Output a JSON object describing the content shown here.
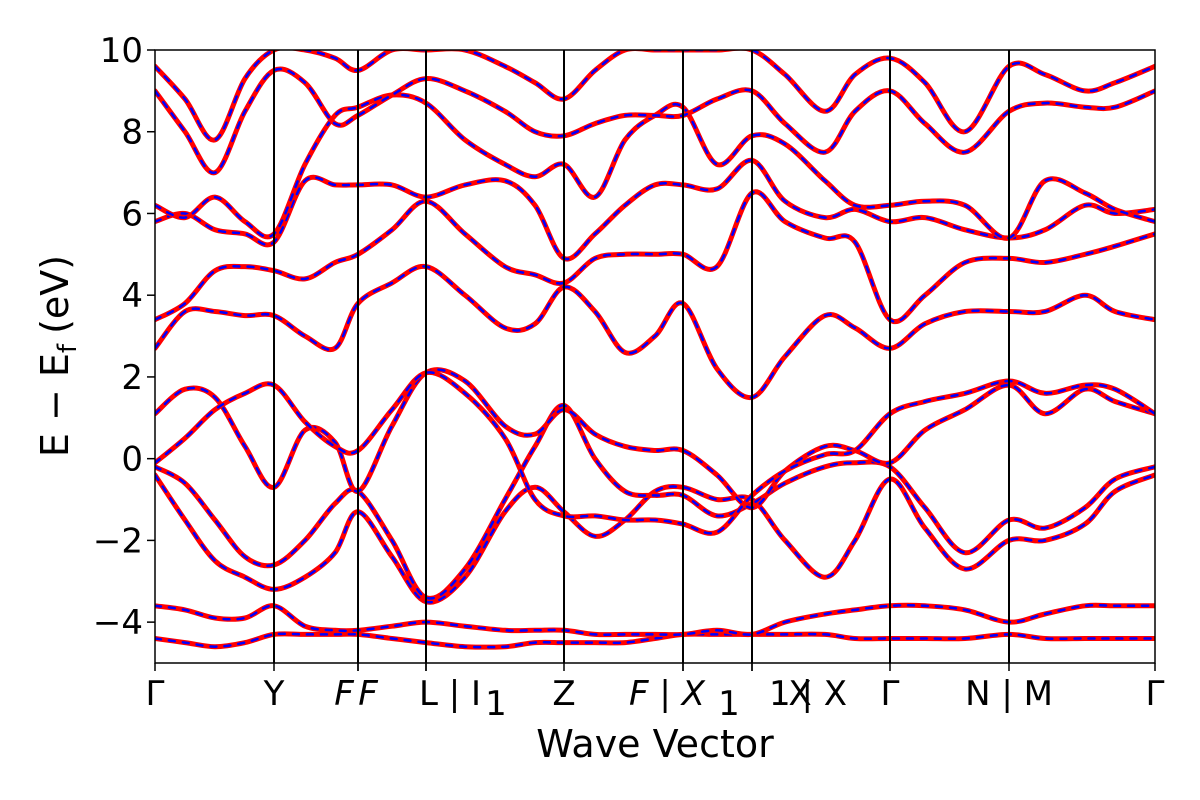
{
  "chart_data": {
    "type": "line",
    "xlabel": "Wave Vector",
    "ylabel": "E − E",
    "ylabel_sub": "f",
    "ylabel_unit": "(eV)",
    "ylim": [
      -5,
      10
    ],
    "yticks": [
      {
        "value": -4,
        "label": "−4"
      },
      {
        "value": -2,
        "label": "−2"
      },
      {
        "value": 0,
        "label": "0"
      },
      {
        "value": 2,
        "label": "2"
      },
      {
        "value": 4,
        "label": "4"
      },
      {
        "value": 6,
        "label": "6"
      },
      {
        "value": 8,
        "label": "8"
      },
      {
        "value": 10,
        "label": "10"
      }
    ],
    "grid": false,
    "kpath": [
      {
        "pos": 0.0,
        "label": "Γ"
      },
      {
        "pos": 0.119,
        "label": "Y"
      },
      {
        "pos": 0.203,
        "label": "F"
      },
      {
        "pos": 0.203,
        "label": "F"
      },
      {
        "pos": 0.271,
        "label": "L | I"
      },
      {
        "pos": 0.271,
        "label": "1"
      },
      {
        "pos": 0.409,
        "label": "Z"
      },
      {
        "pos": 0.528,
        "label": "F | X"
      },
      {
        "pos": 0.528,
        "label": "1"
      },
      {
        "pos": 0.597,
        "label": "X"
      },
      {
        "pos": 0.597,
        "label": "1 | X"
      },
      {
        "pos": 0.735,
        "label": "Γ"
      },
      {
        "pos": 0.854,
        "label": "N | M"
      },
      {
        "pos": 1.0,
        "label": "Γ"
      }
    ],
    "kpath_lines": [
      0.119,
      0.203,
      0.271,
      0.409,
      0.528,
      0.597,
      0.735,
      0.854
    ],
    "series_colors": {
      "main": "#ff0000",
      "overlay": "#0000ff"
    },
    "x": [
      0.0,
      0.03,
      0.06,
      0.09,
      0.119,
      0.15,
      0.18,
      0.203,
      0.237,
      0.271,
      0.31,
      0.35,
      0.38,
      0.409,
      0.44,
      0.47,
      0.5,
      0.528,
      0.562,
      0.597,
      0.63,
      0.67,
      0.7,
      0.735,
      0.77,
      0.81,
      0.854,
      0.89,
      0.93,
      0.96,
      1.0
    ],
    "bands": [
      [
        -4.4,
        -4.5,
        -4.6,
        -4.5,
        -4.3,
        -4.3,
        -4.3,
        -4.3,
        -4.4,
        -4.5,
        -4.6,
        -4.6,
        -4.5,
        -4.5,
        -4.5,
        -4.5,
        -4.4,
        -4.3,
        -4.3,
        -4.3,
        -4.3,
        -4.3,
        -4.4,
        -4.4,
        -4.4,
        -4.4,
        -4.3,
        -4.4,
        -4.4,
        -4.4,
        -4.4
      ],
      [
        -3.6,
        -3.7,
        -3.9,
        -3.9,
        -3.6,
        -4.1,
        -4.2,
        -4.2,
        -4.1,
        -4.0,
        -4.1,
        -4.2,
        -4.2,
        -4.2,
        -4.3,
        -4.3,
        -4.3,
        -4.3,
        -4.2,
        -4.3,
        -4.0,
        -3.8,
        -3.7,
        -3.6,
        -3.6,
        -3.7,
        -4.0,
        -3.8,
        -3.6,
        -3.6,
        -3.6
      ],
      [
        -0.4,
        -1.5,
        -2.5,
        -2.9,
        -3.2,
        -2.9,
        -2.3,
        -1.3,
        -2.4,
        -3.5,
        -2.9,
        -1.3,
        -0.7,
        -1.3,
        -1.9,
        -1.5,
        -0.8,
        -0.7,
        -1.0,
        -1.0,
        -2.0,
        -2.9,
        -2.0,
        -0.5,
        -1.7,
        -2.7,
        -2.0,
        -2.0,
        -1.6,
        -0.8,
        -0.4
      ],
      [
        -0.2,
        -0.6,
        -1.5,
        -2.4,
        -2.6,
        -2.0,
        -1.1,
        -0.8,
        -2.0,
        -3.4,
        -2.7,
        -1.0,
        0.3,
        1.3,
        0.0,
        -0.8,
        -0.9,
        -0.9,
        -1.4,
        -1.1,
        -0.6,
        -0.2,
        -0.1,
        -0.2,
        -1.2,
        -2.3,
        -1.5,
        -1.7,
        -1.2,
        -0.5,
        -0.2
      ],
      [
        1.1,
        1.7,
        1.5,
        0.3,
        -0.7,
        0.7,
        0.4,
        -0.8,
        0.8,
        2.1,
        1.9,
        0.8,
        0.6,
        1.2,
        0.6,
        0.3,
        0.2,
        0.2,
        -0.4,
        -1.2,
        -0.3,
        0.3,
        0.2,
        -0.1,
        0.7,
        1.2,
        1.8,
        1.1,
        1.7,
        1.4,
        1.1
      ],
      [
        -0.1,
        0.5,
        1.2,
        1.6,
        1.8,
        0.9,
        0.3,
        0.2,
        1.2,
        2.1,
        1.6,
        0.5,
        -1.0,
        -1.4,
        -1.4,
        -1.5,
        -1.5,
        -1.6,
        -1.8,
        -0.9,
        -0.3,
        0.1,
        0.2,
        1.1,
        1.4,
        1.6,
        1.9,
        1.6,
        1.8,
        1.7,
        1.1
      ],
      [
        2.7,
        3.6,
        3.6,
        3.5,
        3.5,
        3.0,
        2.7,
        3.8,
        4.3,
        4.7,
        4.0,
        3.2,
        3.3,
        4.2,
        3.6,
        2.6,
        3.0,
        3.8,
        2.2,
        1.5,
        2.5,
        3.5,
        3.2,
        2.7,
        3.3,
        3.6,
        3.6,
        3.6,
        4.0,
        3.6,
        3.4
      ],
      [
        3.4,
        3.8,
        4.6,
        4.7,
        4.6,
        4.4,
        4.8,
        5.0,
        5.6,
        6.3,
        5.5,
        4.7,
        4.5,
        4.3,
        4.9,
        5.0,
        5.0,
        5.0,
        4.7,
        6.5,
        5.8,
        5.4,
        5.3,
        3.4,
        4.0,
        4.8,
        4.9,
        4.8,
        5.0,
        5.2,
        5.5
      ],
      [
        5.8,
        6.0,
        5.6,
        5.5,
        5.3,
        6.8,
        6.7,
        6.7,
        6.7,
        6.4,
        6.7,
        6.8,
        6.2,
        4.9,
        5.5,
        6.2,
        6.7,
        6.7,
        6.6,
        7.3,
        6.3,
        5.9,
        6.1,
        5.8,
        5.9,
        5.6,
        5.4,
        5.6,
        6.2,
        6.0,
        6.1
      ],
      [
        6.2,
        5.9,
        6.4,
        5.8,
        5.5,
        7.2,
        8.4,
        8.6,
        8.9,
        8.7,
        7.8,
        7.2,
        6.9,
        7.2,
        6.4,
        7.8,
        8.4,
        8.6,
        7.2,
        7.9,
        7.7,
        6.8,
        6.2,
        6.2,
        6.3,
        6.2,
        5.4,
        6.8,
        6.5,
        6.1,
        5.8
      ],
      [
        9.0,
        8.0,
        7.0,
        8.5,
        9.5,
        9.2,
        8.2,
        8.4,
        8.9,
        9.3,
        9.0,
        8.5,
        8.0,
        7.9,
        8.2,
        8.4,
        8.4,
        8.4,
        8.8,
        9.0,
        8.2,
        7.5,
        8.5,
        9.0,
        8.2,
        7.5,
        8.5,
        8.7,
        8.6,
        8.6,
        9.0
      ],
      [
        9.6,
        8.8,
        7.8,
        9.3,
        10.0,
        10.0,
        9.8,
        9.5,
        10.0,
        10.0,
        10.0,
        9.6,
        9.2,
        8.8,
        9.5,
        10.0,
        10.0,
        10.0,
        10.0,
        10.0,
        9.4,
        8.5,
        9.4,
        9.8,
        9.2,
        8.0,
        9.6,
        9.4,
        9.0,
        9.2,
        9.6
      ]
    ]
  }
}
